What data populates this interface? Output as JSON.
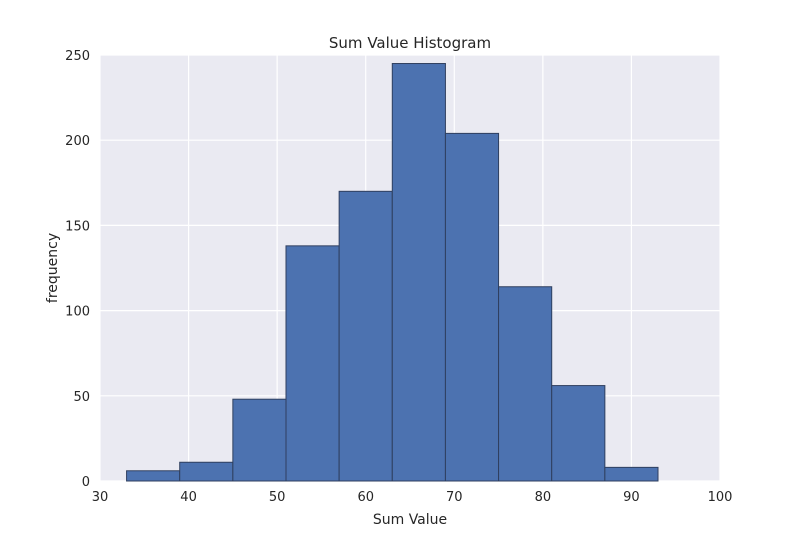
{
  "chart_data": {
    "type": "bar",
    "title": "Sum Value Histogram",
    "xlabel": "Sum Value",
    "ylabel": "frequency",
    "xlim": [
      30,
      100
    ],
    "ylim": [
      0,
      250
    ],
    "xticks": [
      30,
      40,
      50,
      60,
      70,
      80,
      90,
      100
    ],
    "yticks": [
      0,
      50,
      100,
      150,
      200,
      250
    ],
    "grid": true,
    "bins": [
      {
        "start": 33,
        "end": 39,
        "count": 6
      },
      {
        "start": 39,
        "end": 45,
        "count": 11
      },
      {
        "start": 45,
        "end": 51,
        "count": 48
      },
      {
        "start": 51,
        "end": 57,
        "count": 138
      },
      {
        "start": 57,
        "end": 63,
        "count": 170
      },
      {
        "start": 63,
        "end": 69,
        "count": 245
      },
      {
        "start": 69,
        "end": 75,
        "count": 204
      },
      {
        "start": 75,
        "end": 81,
        "count": 114
      },
      {
        "start": 81,
        "end": 87,
        "count": 56
      },
      {
        "start": 87,
        "end": 93,
        "count": 8
      }
    ],
    "colors": {
      "bar_fill": "#4c72b0",
      "bar_edge": "#2f3f5f",
      "plot_background": "#eaeaf2",
      "grid": "#ffffff"
    }
  }
}
